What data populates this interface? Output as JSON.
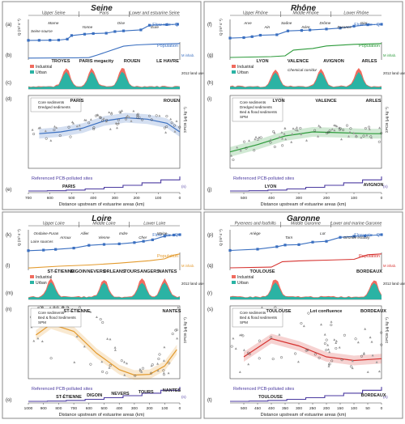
{
  "panels": [
    {
      "title": "Seine",
      "reaches": [
        "Upper Seine",
        "Paris",
        "Lower and estuarine Seine"
      ],
      "letters": [
        "(a)",
        "(b)",
        "(c)",
        "(d)",
        "(e)"
      ],
      "source_label": "Seine source",
      "tributaries": [
        "Marne",
        "Yonne",
        "Oise",
        "Eure"
      ],
      "flow_label": "Flow rate - Q",
      "pop_label": "Population",
      "q_label": "Q (m³ s⁻¹)",
      "pop_unit": "M inhab.",
      "city_labels": [
        "TROYES",
        "PARIS megacity",
        "ROUEN",
        "LE HAVRE"
      ],
      "land_use_label": "2012 land use (%)",
      "legend_land": [
        "Industrial",
        "Urban"
      ],
      "scatter_cities": [
        "PARIS",
        "ROUEN"
      ],
      "legend_sed": [
        "Core sediments",
        "Dredged sediments"
      ],
      "pcb_label": "ΣPCB (μg kg⁻¹)",
      "sites_label": "Referenced PCB-polluted sites",
      "sites_city": "PARIS",
      "sites_unit": "(n)",
      "xlabel": "Distance upstream of estuarine areas (km)"
    },
    {
      "title": "Rhône",
      "reaches": [
        "Upper Rhône",
        "Middle Rhône",
        "Lower Rhône"
      ],
      "letters": [
        "(f)",
        "(g)",
        "(h)",
        "(i)",
        "(j)"
      ],
      "tributaries": [
        "Arve",
        "Ain",
        "Saône",
        "Isère",
        "Drôme",
        "Durance",
        "Gier"
      ],
      "flow_label": "Flow rate - Q",
      "pop_label": "Population",
      "q_label": "Q (m³ s⁻¹)",
      "pop_unit": "M inhab.",
      "city_labels": [
        "LYON",
        "VALENCE",
        "AVIGNON",
        "ARLES"
      ],
      "chemical_label": "Chemical corridor",
      "land_use_label": "2012 land use (%)",
      "legend_land": [
        "Industrial",
        "Urban"
      ],
      "scatter_cities": [
        "LYON",
        "VALENCE",
        "ARLES"
      ],
      "legend_sed": [
        "Core sediments",
        "Dredged sediments",
        "Bed & flood sediments",
        "SPM"
      ],
      "pcb_label": "ΣPCB (μg kg⁻¹)",
      "sites_label": "Referenced PCB-polluted sites",
      "sites_cities": [
        "LYON",
        "AVIGNON"
      ],
      "sites_unit": "(n)",
      "xlabel": "Distance upstream of estuarine areas (km)"
    },
    {
      "title": "Loire",
      "reaches": [
        "Upper Loire",
        "Middle Loire",
        "Lower Loire"
      ],
      "letters": [
        "(k)",
        "(l)",
        "(m)",
        "(n)",
        "(o)"
      ],
      "source_label": "Loire sources",
      "tributaries": [
        "Ondaine-Furan",
        "Arroux",
        "Allier",
        "Vienne",
        "Indre",
        "Cher",
        "Maine"
      ],
      "flow_label": "Flow rate - Q",
      "pop_label": "Population",
      "q_label": "Q (m³ s⁻¹)",
      "pop_unit": "M inhab.",
      "city_labels": [
        "ST-ÉTIENNE",
        "DIGOIN",
        "NEVERS",
        "ORLEANS",
        "TOURS",
        "ANGERS",
        "NANTES"
      ],
      "land_use_label": "2012 land use (%)",
      "legend_land": [
        "Industrial",
        "Urban"
      ],
      "scatter_cities": [
        "ST-ÉTIENNE",
        "NANTES"
      ],
      "legend_sed": [
        "Core sediments",
        "Bed & flood Sediments",
        "SPM"
      ],
      "pcb_label": "ΣPCB (μg kg⁻¹)",
      "sites_label": "Referenced PCB-polluted sites",
      "sites_cities": [
        "ST-ÉTIENNE",
        "DIGOIN",
        "NEVERS",
        "TOURS",
        "NANTES"
      ],
      "sites_unit": "(n)",
      "xlabel": "Distance upstream of estuarine areas (km)"
    },
    {
      "title": "Garonne",
      "reaches": [
        "Pyrenees and foothills",
        "Middle Garonne",
        "Lower and marine Garonne"
      ],
      "letters": [
        "(p)",
        "(q)",
        "(r)",
        "(s)",
        "(t)"
      ],
      "tributaries": [
        "Ariège",
        "Tarn",
        "Lot",
        "Gironde estuary"
      ],
      "flow_label": "Flow rate - Q",
      "pop_label": "Population",
      "q_label": "Q (m³ s⁻¹)",
      "pop_unit": "M inhab.",
      "city_labels": [
        "TOULOUSE",
        "BORDEAUX"
      ],
      "land_use_label": "2012 land use (%)",
      "legend_land": [
        "Industrial",
        "Urban"
      ],
      "scatter_cities": [
        "TOULOUSE",
        "Lot confluence",
        "BORDEAUX"
      ],
      "legend_sed": [
        "Core sediments",
        "Bed & flood sediments",
        "SPM"
      ],
      "pcb_label": "ΣPCB (μg kg⁻¹)",
      "sites_label": "Referenced PCB-polluted sites",
      "sites_cities": [
        "TOULOUSE",
        "BORDEAUX"
      ],
      "sites_unit": "(n)",
      "xlabel": "Distance upstream of estuarine areas (km)"
    }
  ],
  "colors": {
    "flow": "#3a6fc0",
    "population_seine": "#3a6fc0",
    "population_rhone": "#2c9a3a",
    "population_loire": "#e39a2d",
    "population_garonne": "#d6322f",
    "industrial": "#f06b5e",
    "urban": "#2bb3a4",
    "sites": "#4b3aa0",
    "border": "#888888"
  },
  "chart_data": [
    {
      "type": "line",
      "title": "Seine",
      "x_range": [
        700,
        0
      ],
      "x_ticks": [
        700,
        600,
        500,
        400,
        300,
        200,
        100,
        0
      ],
      "series": [
        {
          "name": "Flow rate - Q",
          "x": [
            700,
            650,
            600,
            560,
            520,
            500,
            440,
            400,
            340,
            300,
            260,
            180,
            140,
            60,
            10
          ],
          "values": [
            3,
            5,
            8,
            12,
            40,
            150,
            190,
            210,
            220,
            270,
            290,
            320,
            460,
            480,
            490
          ]
        },
        {
          "name": "Population",
          "x": [
            700,
            500,
            420,
            380,
            260,
            200,
            120,
            0
          ],
          "values": [
            0.1,
            0.3,
            0.5,
            2.5,
            9,
            10,
            10.5,
            11
          ]
        }
      ],
      "pcb_ylim": [
        1,
        10000
      ],
      "pcb_trend": {
        "x": [
          650,
          550,
          450,
          350,
          250,
          150,
          60,
          0
        ],
        "values": [
          80,
          100,
          160,
          400,
          600,
          500,
          300,
          100
        ]
      }
    },
    {
      "type": "line",
      "title": "Rhône",
      "x_range": [
        550,
        0
      ],
      "x_ticks": [
        500,
        400,
        300,
        200,
        100,
        0
      ],
      "series": [
        {
          "name": "Flow rate - Q",
          "x": [
            550,
            500,
            470,
            440,
            380,
            340,
            290,
            260,
            200,
            150,
            100,
            50,
            0
          ],
          "values": [
            250,
            300,
            400,
            550,
            600,
            1000,
            1050,
            1100,
            1200,
            1300,
            1500,
            1650,
            1700
          ]
        },
        {
          "name": "Population",
          "x": [
            550,
            400,
            350,
            320,
            250,
            200,
            100,
            0
          ],
          "values": [
            0.2,
            0.4,
            0.6,
            2,
            2.4,
            3,
            3.4,
            3.6
          ]
        }
      ],
      "pcb_ylim": [
        1,
        10000
      ],
      "pcb_trend": {
        "x": [
          550,
          450,
          350,
          250,
          150,
          50,
          0
        ],
        "values": [
          8,
          20,
          60,
          100,
          90,
          80,
          80
        ]
      }
    },
    {
      "type": "line",
      "title": "Loire",
      "x_range": [
        1000,
        0
      ],
      "x_ticks": [
        1000,
        900,
        800,
        700,
        600,
        500,
        400,
        300,
        200,
        100,
        0
      ],
      "series": [
        {
          "name": "Flow rate - Q",
          "x": [
            1000,
            900,
            820,
            700,
            600,
            500,
            400,
            300,
            240,
            180,
            100,
            40,
            0
          ],
          "values": [
            10,
            40,
            80,
            150,
            300,
            350,
            380,
            450,
            520,
            600,
            800,
            860,
            880
          ]
        },
        {
          "name": "Population",
          "x": [
            1000,
            800,
            600,
            400,
            300,
            200,
            100,
            40,
            0
          ],
          "values": [
            0.1,
            0.4,
            0.6,
            0.9,
            1.1,
            1.3,
            1.6,
            2.2,
            2.4
          ]
        }
      ],
      "pcb_ylim": [
        0,
        2000
      ],
      "pcb_trend": {
        "x": [
          950,
          850,
          700,
          550,
          400,
          300,
          200,
          100,
          20
        ],
        "values": [
          1200,
          1500,
          1300,
          700,
          250,
          100,
          120,
          350,
          800
        ]
      }
    },
    {
      "type": "line",
      "title": "Garonne",
      "x_range": [
        550,
        0
      ],
      "x_ticks": [
        500,
        450,
        400,
        350,
        300,
        250,
        200,
        150,
        100,
        50,
        0
      ],
      "series": [
        {
          "name": "Flow rate - Q",
          "x": [
            550,
            450,
            380,
            350,
            300,
            250,
            200,
            150,
            100,
            60,
            0
          ],
          "values": [
            20,
            80,
            200,
            280,
            300,
            420,
            460,
            650,
            700,
            720,
            780
          ]
        },
        {
          "name": "Population",
          "x": [
            550,
            400,
            360,
            300,
            200,
            100,
            50,
            0
          ],
          "values": [
            0.1,
            0.2,
            0.9,
            1.0,
            1.1,
            1.2,
            1.8,
            1.9
          ]
        }
      ],
      "pcb_ylim": [
        0,
        200
      ],
      "pcb_trend": {
        "x": [
          500,
          400,
          300,
          200,
          100,
          0
        ],
        "values": [
          60,
          110,
          90,
          60,
          50,
          55
        ]
      }
    }
  ]
}
